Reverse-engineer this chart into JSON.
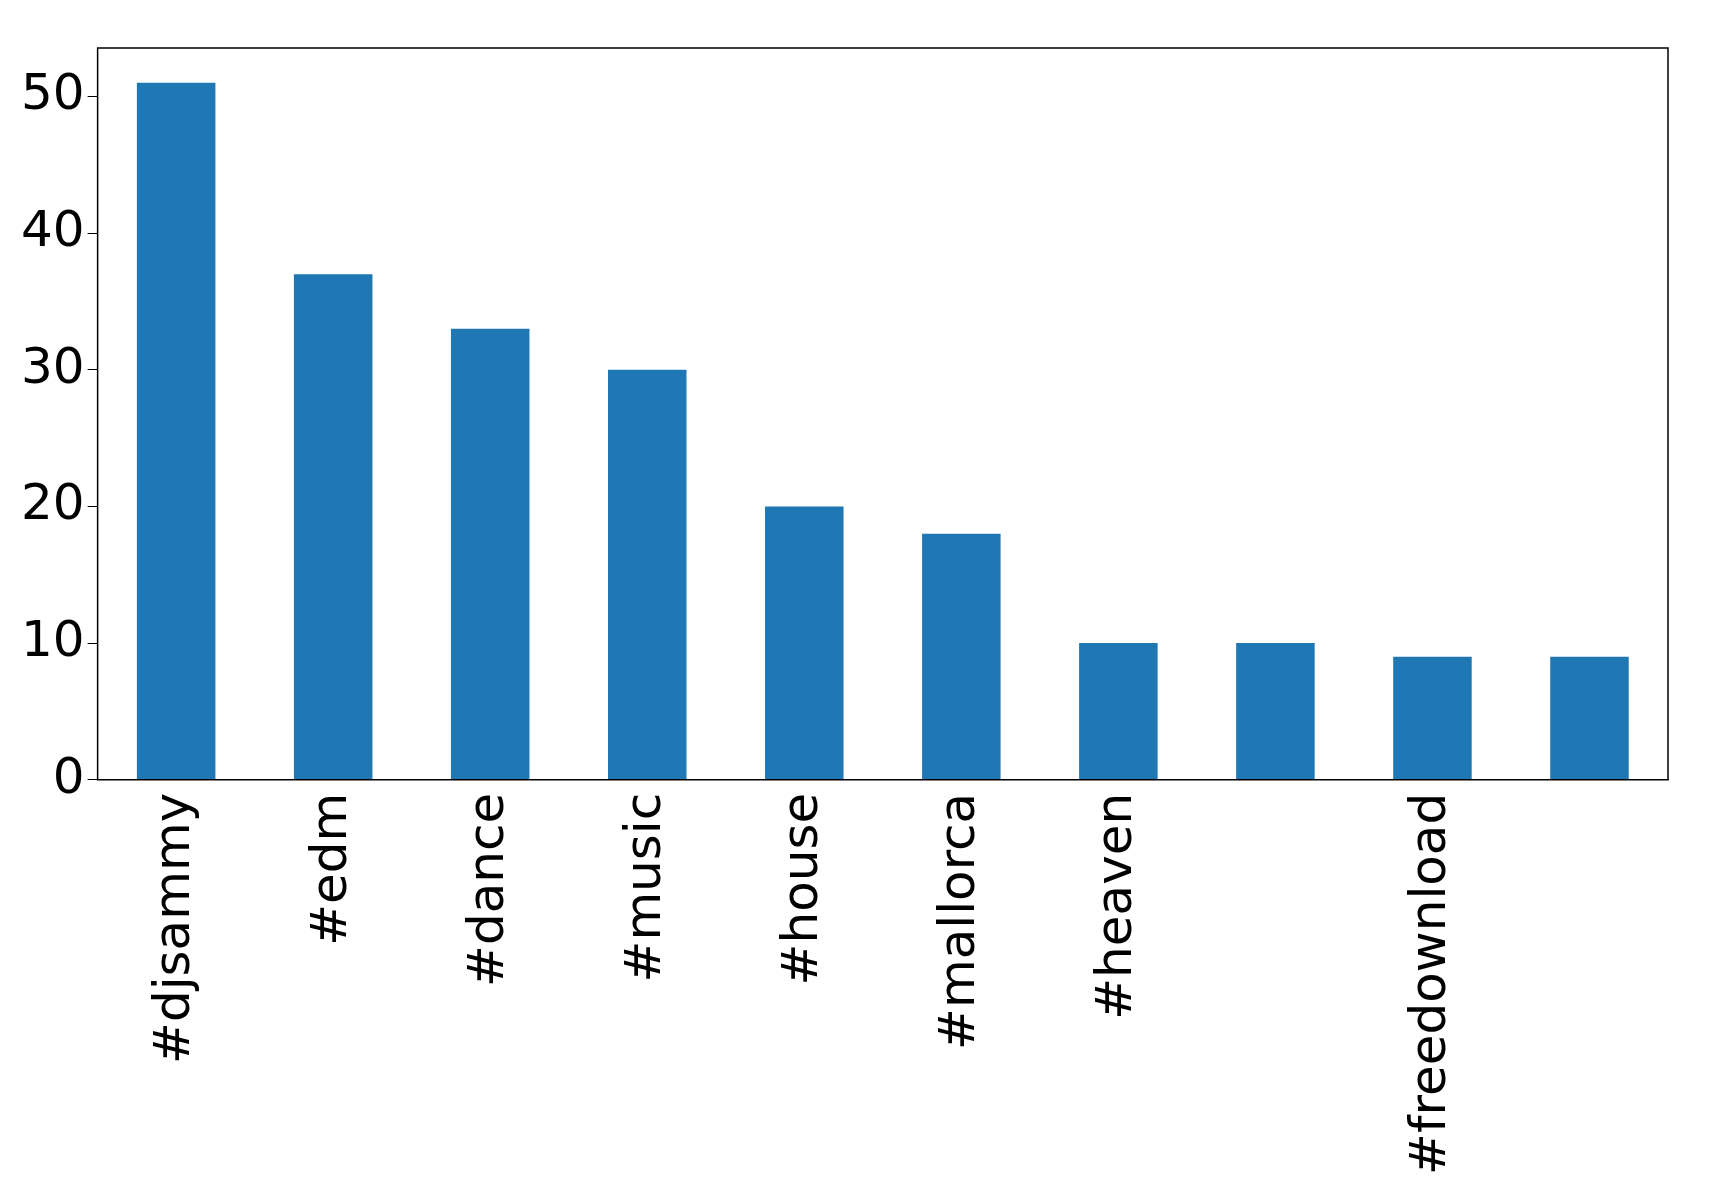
{
  "chart_data": {
    "type": "bar",
    "categories": [
      "#djsammy",
      "#edm",
      "#dance",
      "#music",
      "#house",
      "#mallorca",
      "#heaven",
      null,
      "#freedownload",
      null
    ],
    "values": [
      51,
      37,
      33,
      30,
      20,
      18,
      10,
      10,
      9,
      9
    ],
    "color": "#1f77b4",
    "ylim": [
      0,
      53.55
    ],
    "yticks": [
      0,
      10,
      20,
      30,
      40,
      50
    ],
    "grid": false,
    "legend": false
  }
}
